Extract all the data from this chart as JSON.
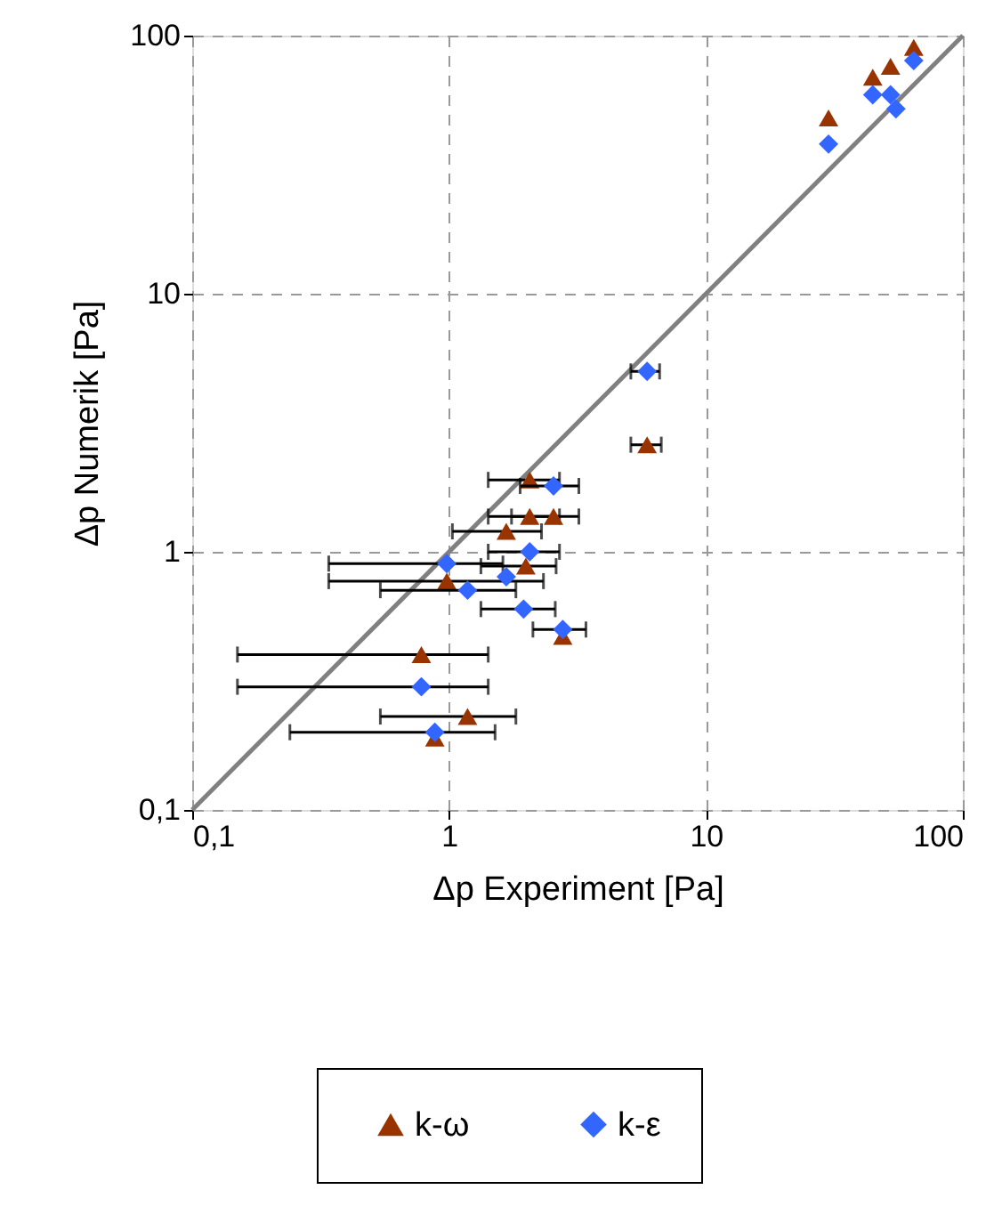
{
  "chart_data": {
    "type": "scatter",
    "xlabel": "Δp Experiment  [Pa]",
    "ylabel": "Δp Numerik  [Pa]",
    "log": "xy",
    "grid": true,
    "legend": "bottom",
    "xlim": [
      0.1,
      100
    ],
    "ylim": [
      0.1,
      100
    ],
    "xticks": [
      {
        "value": 0.1,
        "label": "0,1"
      },
      1,
      10,
      100
    ],
    "yticks": [
      {
        "value": 0.1,
        "label": "0,1"
      },
      1,
      10,
      100
    ],
    "series": [
      {
        "type": "line",
        "color": "#808080",
        "marker": "none",
        "line_style": "solid",
        "x": [
          0.1,
          100
        ],
        "values": [
          0.1,
          100
        ]
      },
      {
        "name": "k-ω",
        "type": "scatter",
        "marker": "triangle",
        "color": "#993300",
        "x": [
          2.06,
          2.06,
          2.55,
          1.67,
          1.99,
          0.98,
          2.77,
          0.78,
          1.18,
          0.88,
          5.9,
          30,
          44.6,
          52.3,
          64.4
        ],
        "values": [
          1.9,
          1.37,
          1.37,
          1.2,
          0.88,
          0.77,
          0.47,
          0.4,
          0.23,
          0.19,
          2.6,
          48,
          69,
          76,
          90
        ],
        "xerrors": [
          [
            1.42,
            2.69
          ],
          [
            1.42,
            2.69
          ],
          [
            1.75,
            3.2
          ],
          [
            1.03,
            2.29
          ],
          [
            1.33,
            2.61
          ],
          [
            0.34,
            2.33
          ],
          null,
          [
            0.15,
            1.42
          ],
          [
            0.54,
            1.82
          ],
          null,
          [
            5.1,
            6.7
          ],
          null,
          null,
          null,
          null
        ]
      },
      {
        "name": "k-ε",
        "type": "scatter",
        "marker": "diamond",
        "color": "#3366ff",
        "x": [
          2.55,
          2.06,
          0.98,
          1.67,
          1.18,
          1.95,
          2.77,
          0.78,
          0.88,
          5.9,
          30,
          44.6,
          52.3,
          54.9,
          64.4
        ],
        "values": [
          1.8,
          1.0,
          0.9,
          0.8,
          0.71,
          0.6,
          0.5,
          0.3,
          0.2,
          5.0,
          38,
          59,
          59,
          52,
          80
        ],
        "xerrors": [
          [
            1.89,
            3.2
          ],
          [
            1.42,
            2.69
          ],
          [
            0.34,
            1.62
          ],
          null,
          [
            0.54,
            1.82
          ],
          [
            1.33,
            2.59
          ],
          [
            2.12,
            3.41
          ],
          [
            0.15,
            1.42
          ],
          [
            0.24,
            1.51
          ],
          [
            5.1,
            6.6
          ],
          null,
          null,
          null,
          null,
          null
        ]
      }
    ]
  }
}
